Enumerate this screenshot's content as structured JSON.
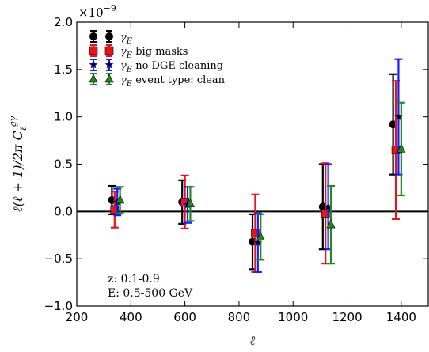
{
  "chart_data": {
    "type": "scatter",
    "title": "",
    "xlabel": "ℓ",
    "ylabel": "ℓ(ℓ + 1)/2π C_ℓ^{gγ}",
    "ylabel_parts": {
      "main": "ℓ(ℓ + 1)/2π C",
      "sub": "ℓ",
      "sup": "gγ"
    },
    "y_scale_label": {
      "base": "×10",
      "exp": "−9"
    },
    "xlim": [
      200,
      1500
    ],
    "ylim": [
      -1.0,
      2.0
    ],
    "xticks": [
      200,
      400,
      600,
      800,
      1000,
      1200,
      1400
    ],
    "yticks": [
      -1.0,
      -0.5,
      0.0,
      0.5,
      1.0,
      1.5,
      2.0
    ],
    "ytick_labels": [
      "−1.0",
      "−0.5",
      "0.0",
      "0.5",
      "1.0",
      "1.5",
      "2.0"
    ],
    "zero_line": true,
    "legend_position": "top-left",
    "series": [
      {
        "name": "γ_E",
        "label_main": "γ",
        "label_sub": "E",
        "label_rest": "",
        "color": "#000000",
        "marker": "circle",
        "points": [
          {
            "x": 330,
            "y": 0.12,
            "err": 0.15
          },
          {
            "x": 590,
            "y": 0.1,
            "err": 0.23
          },
          {
            "x": 850,
            "y": -0.32,
            "err": 0.29
          },
          {
            "x": 1110,
            "y": 0.05,
            "err": 0.45
          },
          {
            "x": 1370,
            "y": 0.92,
            "err": 0.53
          }
        ]
      },
      {
        "name": "γ_E big masks",
        "label_main": "γ",
        "label_sub": "E",
        "label_rest": " big masks",
        "color": "#e8141c",
        "marker": "square",
        "points": [
          {
            "x": 340,
            "y": 0.02,
            "err": 0.19
          },
          {
            "x": 600,
            "y": 0.1,
            "err": 0.28
          },
          {
            "x": 860,
            "y": -0.23,
            "err": 0.41
          },
          {
            "x": 1120,
            "y": -0.02,
            "err": 0.53
          },
          {
            "x": 1380,
            "y": 0.65,
            "err": 0.73
          }
        ]
      },
      {
        "name": "γ_E no DGE cleaning",
        "label_main": "γ",
        "label_sub": "E",
        "label_rest": " no DGE cleaning",
        "color": "#1a1aff",
        "marker": "star",
        "points": [
          {
            "x": 350,
            "y": 0.1,
            "err": 0.14
          },
          {
            "x": 610,
            "y": 0.07,
            "err": 0.19
          },
          {
            "x": 870,
            "y": -0.33,
            "err": 0.31
          },
          {
            "x": 1130,
            "y": 0.05,
            "err": 0.45
          },
          {
            "x": 1390,
            "y": 1.0,
            "err": 0.61
          }
        ]
      },
      {
        "name": "γ_E event type: clean",
        "label_main": "γ",
        "label_sub": "E",
        "label_rest": " event type: clean",
        "color": "#1f8a1f",
        "marker": "triangle",
        "points": [
          {
            "x": 360,
            "y": 0.12,
            "err": 0.14
          },
          {
            "x": 620,
            "y": 0.08,
            "err": 0.18
          },
          {
            "x": 880,
            "y": -0.27,
            "err": 0.24
          },
          {
            "x": 1140,
            "y": -0.14,
            "err": 0.41
          },
          {
            "x": 1400,
            "y": 0.66,
            "err": 0.49
          }
        ]
      }
    ],
    "annotations": [
      "z: 0.1-0.9",
      "E: 0.5-500 GeV"
    ]
  }
}
